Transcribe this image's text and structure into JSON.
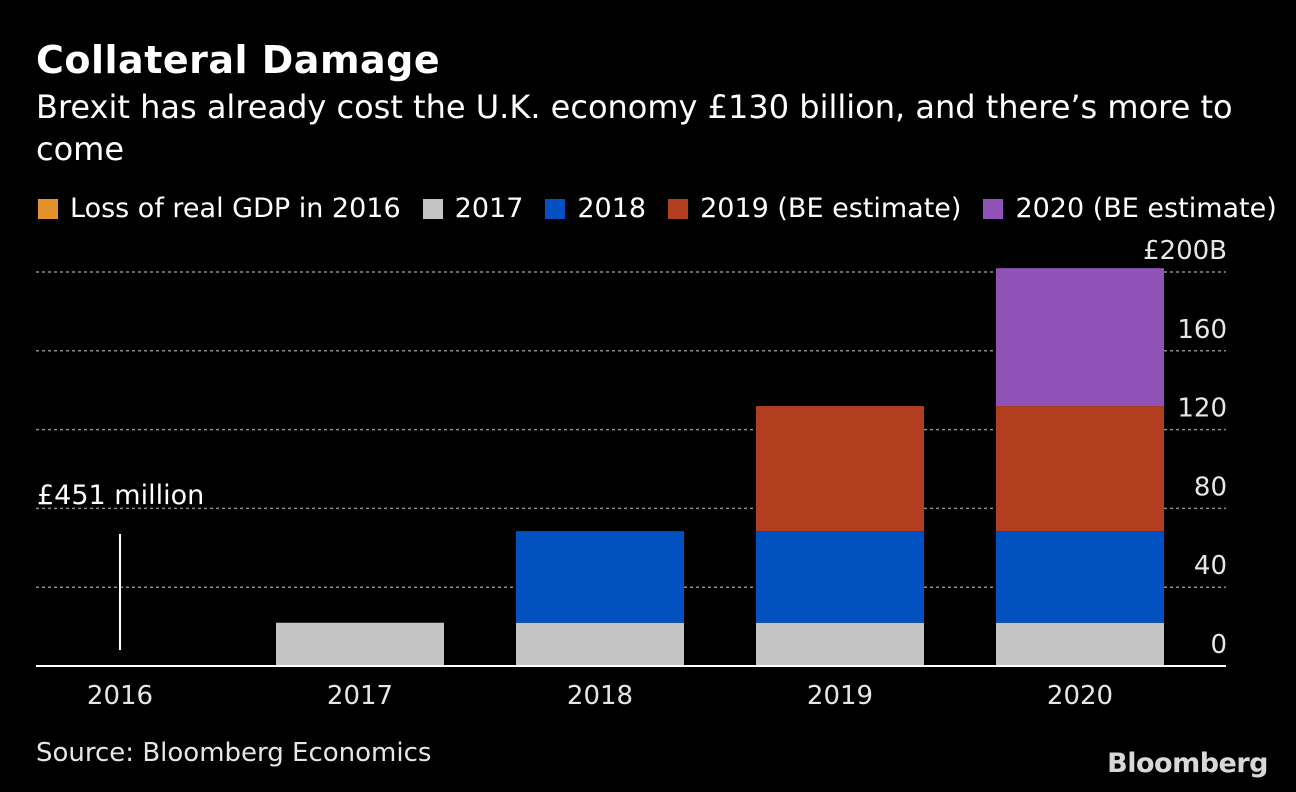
{
  "title": "Collateral Damage",
  "subtitle": "Brexit has already cost the U.K. economy £130 billion, and there’s more to come",
  "source": "Source: Bloomberg Economics",
  "brand": "Bloomberg",
  "annotation": "£451 million",
  "legend": [
    {
      "label": "Loss of real GDP in 2016",
      "color": "#e3922b"
    },
    {
      "label": "2017",
      "color": "#c4c4c4"
    },
    {
      "label": "2018",
      "color": "#0351c1"
    },
    {
      "label": "2019 (BE estimate)",
      "color": "#b13f1f"
    },
    {
      "label": "2020 (BE estimate)",
      "color": "#8f52b7"
    }
  ],
  "chart_data": {
    "type": "bar",
    "stacked": true,
    "categories": [
      "2016",
      "2017",
      "2018",
      "2019",
      "2020"
    ],
    "series": [
      {
        "name": "Loss of real GDP in 2016",
        "color": "#e3922b",
        "values": [
          0.451,
          0.451,
          0.451,
          0.451,
          0.451
        ]
      },
      {
        "name": "2017",
        "color": "#c4c4c4",
        "values": [
          0,
          21.5,
          21.5,
          21.5,
          21.5
        ]
      },
      {
        "name": "2018",
        "color": "#0351c1",
        "values": [
          0,
          0,
          46.5,
          46.5,
          46.5
        ]
      },
      {
        "name": "2019 (BE estimate)",
        "color": "#b13f1f",
        "values": [
          0,
          0,
          0,
          63.5,
          63.5
        ]
      },
      {
        "name": "2020 (BE estimate)",
        "color": "#8f52b7",
        "values": [
          0,
          0,
          0,
          0,
          70
        ]
      }
    ],
    "y_ticks": [
      0,
      40,
      80,
      120,
      160,
      200
    ],
    "y_tick_labels": [
      "0",
      "40",
      "80",
      "120",
      "160",
      "£200B"
    ],
    "ylim": [
      0,
      200
    ],
    "y_axis_position": "right",
    "grid": true
  }
}
